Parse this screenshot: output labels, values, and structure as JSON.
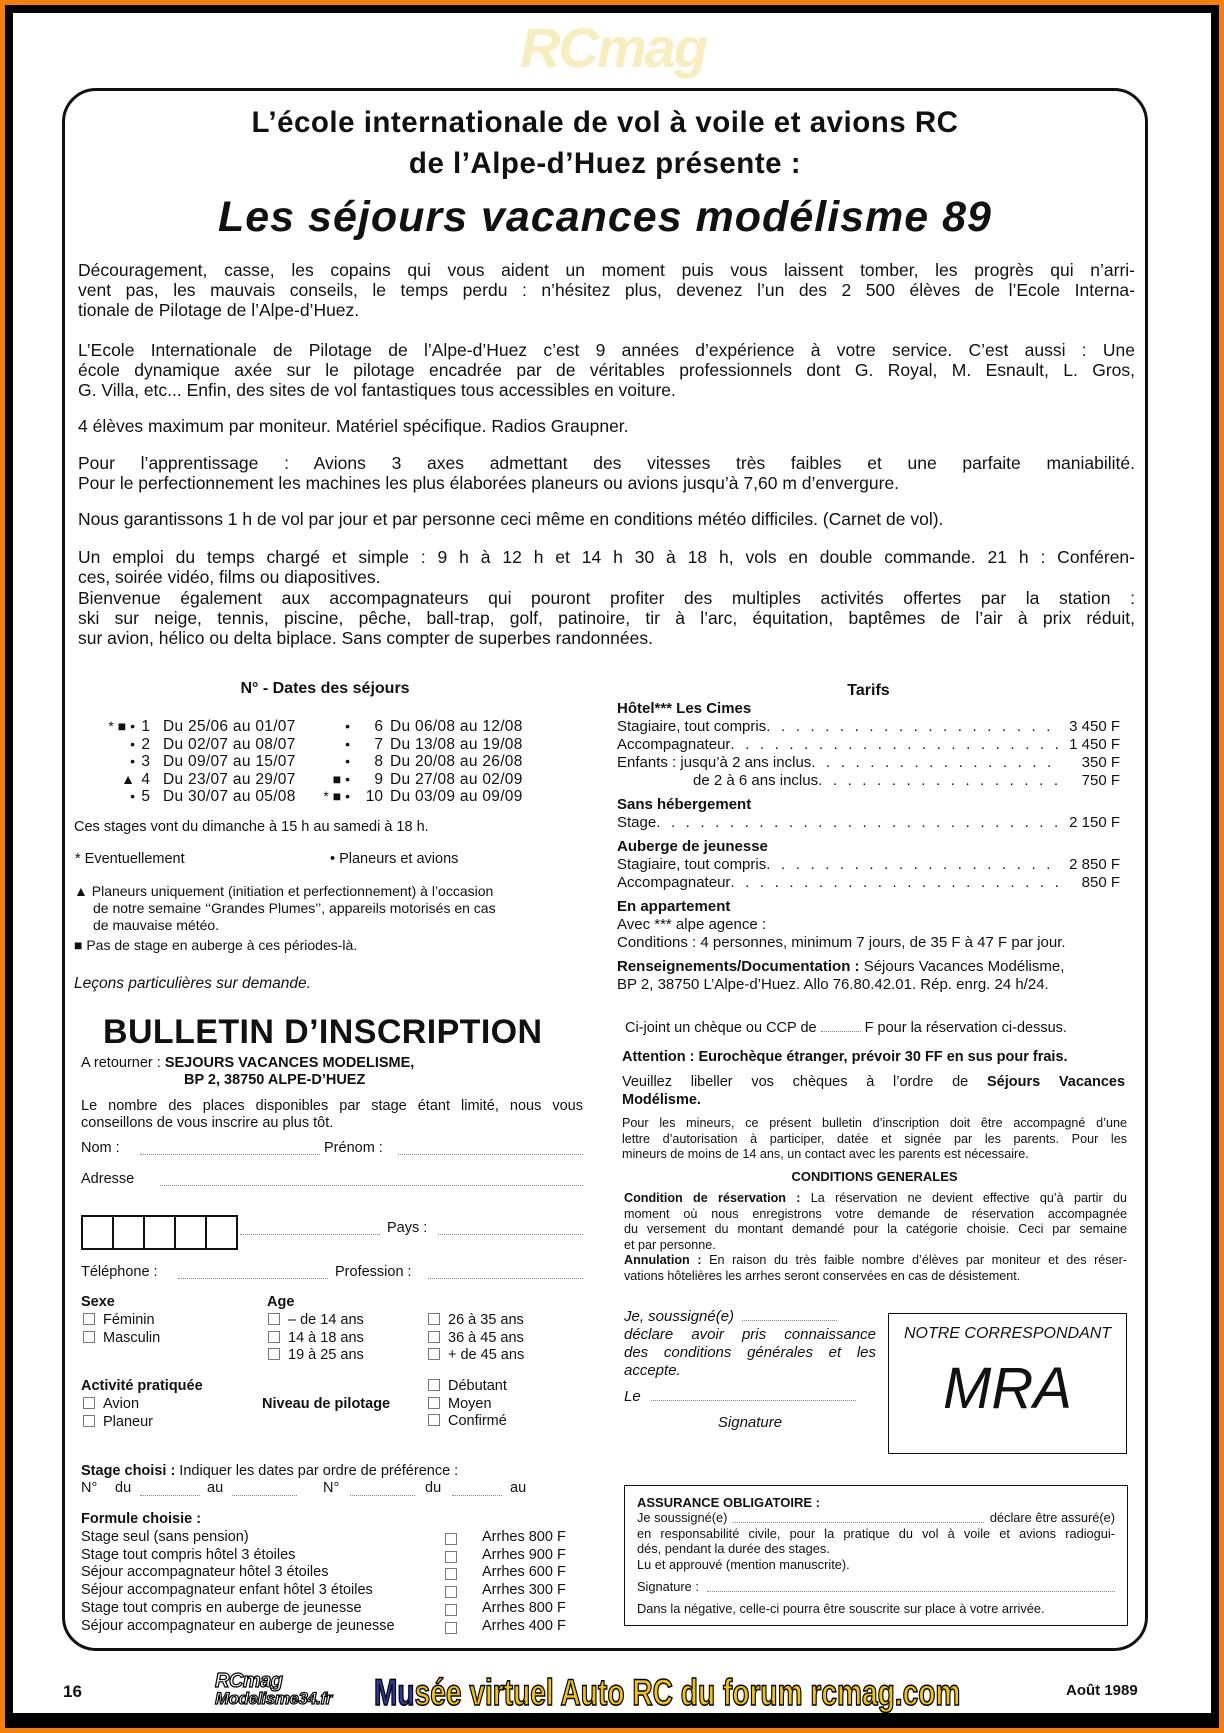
{
  "header": {
    "title_line1": "L’école internationale de vol à voile et avions RC",
    "title_line2": "de l’Alpe-d’Huez présente :",
    "headline": "Les séjours vacances modélisme 89"
  },
  "paragraphs": [
    [
      "Découragement, casse, les copains qui vous aident un moment puis vous laissent tomber, les progrès qui n’arri-",
      "vent pas, les mauvais conseils, le temps perdu : n’hésitez plus, devenez l’un des 2 500 élèves de l’Ecole Interna-",
      "tionale de Pilotage de l’Alpe-d’Huez."
    ],
    [
      "L’Ecole Internationale de Pilotage de l’Alpe-d’Huez c’est 9 années d’expérience à votre service. C’est aussi : Une",
      "école dynamique axée sur le pilotage encadrée par de véritables professionnels dont G. Royal, M. Esnault, L. Gros,",
      "G. Villa, etc... Enfin, des sites de vol fantastiques tous accessibles en voiture."
    ],
    [
      "4 élèves maximum par moniteur. Matériel spécifique. Radios Graupner."
    ],
    [
      "Pour l’apprentissage : Avions 3 axes admettant des vitesses très faibles et une parfaite maniabilité.",
      "Pour le perfectionnement les machines les plus élaborées planeurs ou avions jusqu’à 7,60 m d’envergure."
    ],
    [
      "Nous garantissons 1 h de vol par jour et par personne ceci même en conditions météo difficiles. (Carnet de vol)."
    ],
    [
      "Un emploi du temps chargé et simple : 9 h à 12 h et 14 h 30 à 18 h, vols en double commande. 21 h : Conféren-",
      "ces, soirée vidéo, films ou diapositives."
    ],
    [
      "Bienvenue également aux accompagnateurs qui pouront profiter des multiples activités offertes par la station :",
      "ski sur neige, tennis, piscine, pêche, ball-trap, golf, patinoire, tir à l’arc, équitation, baptêmes de l’air à prix réduit,",
      "sur avion, hélico ou delta biplace. Sans compter de superbes randonnées."
    ]
  ],
  "dates": {
    "heading": "N° - Dates des séjours",
    "left": [
      {
        "markers": "* ■ •",
        "num": "1",
        "text": "Du 25/06 au 01/07"
      },
      {
        "markers": "•",
        "num": "2",
        "text": "Du 02/07 au 08/07"
      },
      {
        "markers": "•",
        "num": "3",
        "text": "Du 09/07 au 15/07"
      },
      {
        "markers": "▲",
        "num": "4",
        "text": "Du 23/07 au 29/07"
      },
      {
        "markers": "•",
        "num": "5",
        "text": "Du 30/07 au 05/08"
      }
    ],
    "right": [
      {
        "markers": "•",
        "num": "6",
        "text": "Du 06/08 au 12/08"
      },
      {
        "markers": "•",
        "num": "7",
        "text": "Du 13/08 au 19/08"
      },
      {
        "markers": "•",
        "num": "8",
        "text": "Du 20/08 au 26/08"
      },
      {
        "markers": "■ •",
        "num": "9",
        "text": "Du 27/08 au 02/09"
      },
      {
        "markers": "* ■ •",
        "num": "10",
        "text": "Du 03/09 au 09/09"
      }
    ],
    "schedule": "Ces stages vont du dimanche à 15 h au samedi à 18 h.",
    "legend_eventuellement": "* Eventuellement",
    "legend_planeurs": "• Planeurs et avions",
    "note_triangle": [
      "▲ Planeurs uniquement (initiation et perfectionnement) à l’occasion",
      "de notre semaine ‘‘Grandes Plumes’’, appareils motorisés en cas",
      "de mauvaise météo."
    ],
    "note_square": "■  Pas de stage en auberge à ces périodes-là.",
    "lessons": "Leçons particulières sur demande."
  },
  "tarifs": {
    "heading": "Tarifs",
    "rows": [
      {
        "type": "head",
        "label": "Hôtel*** Les Cimes"
      },
      {
        "type": "price",
        "label": "Stagiaire, tout compris",
        "price": "3 450 F"
      },
      {
        "type": "price",
        "label": "Accompagnateur",
        "price": "1 450 F"
      },
      {
        "type": "price",
        "label": "Enfants : jusqu’à 2 ans inclus",
        "price": "350 F"
      },
      {
        "type": "price",
        "label": "de 2 à 6 ans inclus",
        "price": "750 F",
        "indent": true
      },
      {
        "type": "head",
        "label": "Sans hébergement",
        "gap": true
      },
      {
        "type": "price",
        "label": "Stage",
        "price": "2 150 F"
      },
      {
        "type": "head",
        "label": "Auberge de jeunesse",
        "gap": true
      },
      {
        "type": "price",
        "label": "Stagiaire, tout compris",
        "price": "2 850 F"
      },
      {
        "type": "price",
        "label": "Accompagnateur",
        "price": "850 F"
      },
      {
        "type": "head",
        "label": "En appartement",
        "gap": true
      },
      {
        "type": "text",
        "label": "Avec *** alpe agence :"
      },
      {
        "type": "text",
        "label": "Conditions : 4 personnes, minimum 7 jours, de 35 F à 47 F par jour."
      }
    ],
    "info_bold": "Renseignements/Documentation :",
    "info_line1": " Séjours Vacances Modélisme,",
    "info_line2": "BP 2, 38750 L’Alpe-d’Huez. Allo 76.80.42.01. Rép. enrg. 24 h/24."
  },
  "payment": {
    "cheque_pre": "Ci-joint un chèque ou CCP de",
    "cheque_post": "F pour la réservation ci-dessus.",
    "attention": "Attention : Eurochèque étranger, prévoir 30 FF en sus pour frais.",
    "order_pre": "Veuillez libeller vos chèques à l’ordre de",
    "order_bold1": "Séjours Vacances",
    "order_bold2": "Modélisme.",
    "minors": [
      "Pour les mineurs, ce présent bulletin d’inscription doit être accompagné d’une",
      "lettre d’autorisation à participer, datée et signée par les parents. Pour les",
      "mineurs de moins de 14 ans, un contact avec les parents est nécessaire."
    ]
  },
  "conditions": {
    "heading": "CONDITIONS GENERALES",
    "reservation_label": "Condition de réservation :",
    "reservation_lines": [
      " La réservation ne devient effective qu’à partir du",
      "moment où nous enregistrons votre demande de réservation accompagnée",
      "du versement du montant demandé pour la catégorie choisie. Ceci par semaine",
      "et par personne."
    ],
    "annulation_label": "Annulation :",
    "annulation_lines": [
      " En raison du très faible nombre d’élèves par moniteur et des réser-",
      "vations hôtelières les arrhes seront conservées en cas de désistement."
    ]
  },
  "declaration": {
    "line1": "Je, soussigné(e)",
    "lines": [
      "déclare avoir pris connaissance",
      "des conditions générales et les",
      "accepte."
    ],
    "le": "Le",
    "signature": "Signature"
  },
  "correspondant": {
    "label": "NOTRE CORRESPONDANT",
    "name": "MRA"
  },
  "assurance": {
    "heading": "ASSURANCE OBLIGATOIRE :",
    "line1_pre": "Je soussigné(e)",
    "line1_post": "déclare être assuré(e)",
    "lines": [
      "en responsabilité civile, pour la pratique du vol à voile et avions radiogui-",
      "dés, pendant la durée des stages.",
      "Lu et approuvé (mention manuscrite)."
    ],
    "signature": "Signature :",
    "negative": "Dans la négative, celle-ci pourra être souscrite sur place à votre arrivée."
  },
  "bulletin": {
    "title": "BULLETIN D’INSCRIPTION",
    "return_label": "A retourner :",
    "return_line1": "SEJOURS VACANCES MODELISME,",
    "return_line2": "BP 2, 38750 ALPE-D’HUEZ",
    "advice": [
      "Le nombre des places disponibles par stage étant limité, nous vous",
      "conseillons de vous inscrire au plus tôt."
    ],
    "nom": "Nom :",
    "prenom": "Prénom :",
    "adresse": "Adresse",
    "pays": "Pays :",
    "telephone": "Téléphone :",
    "profession": "Profession :",
    "sexe": {
      "label": "Sexe",
      "options": [
        "Féminin",
        "Masculin"
      ]
    },
    "age": {
      "label": "Age",
      "col1": [
        "– de 14 ans",
        "14 à 18 ans",
        "19 à 25 ans"
      ],
      "col2": [
        "26 à 35 ans",
        "36 à 45 ans",
        "+ de 45 ans"
      ]
    },
    "activite": {
      "label": "Activité pratiquée",
      "options": [
        "Avion",
        "Planeur"
      ]
    },
    "niveau": {
      "label": "Niveau de pilotage",
      "options": [
        "Débutant",
        "Moyen",
        "Confirmé"
      ]
    },
    "stage_label": "Stage choisi :",
    "stage_text": " Indiquer les dates par ordre de préférence :",
    "stage_no": "N°",
    "stage_du": "du",
    "stage_au": "au",
    "formule_label": "Formule choisie :",
    "formules": [
      {
        "label": "Stage seul (sans pension)",
        "arrhes": "Arrhes 800 F"
      },
      {
        "label": "Stage tout compris hôtel 3 étoiles",
        "arrhes": "Arrhes 900 F"
      },
      {
        "label": "Séjour accompagnateur hôtel 3 étoiles",
        "arrhes": "Arrhes 600 F"
      },
      {
        "label": "Séjour accompagnateur enfant hôtel 3 étoiles",
        "arrhes": "Arrhes 300 F"
      },
      {
        "label": "Stage tout compris en auberge de jeunesse",
        "arrhes": "Arrhes 800 F"
      },
      {
        "label": "Séjour accompagnateur en auberge de jeunesse",
        "arrhes": "Arrhes 400 F"
      }
    ]
  },
  "footer": {
    "page_number": "16",
    "logo_line1": "RCmag",
    "logo_line2": "Modelisme34.fr",
    "banner_blue": "Mu",
    "banner_rest": "sée virtuel Auto RC du forum rcmag.com",
    "date": "Août 1989"
  },
  "watermark": "RCmag",
  "colors": {
    "frame_outer": "#f57f0a",
    "frame_inner": "#000000",
    "banner_fill": "#f5c400",
    "banner_blue": "#2b3a9a"
  }
}
